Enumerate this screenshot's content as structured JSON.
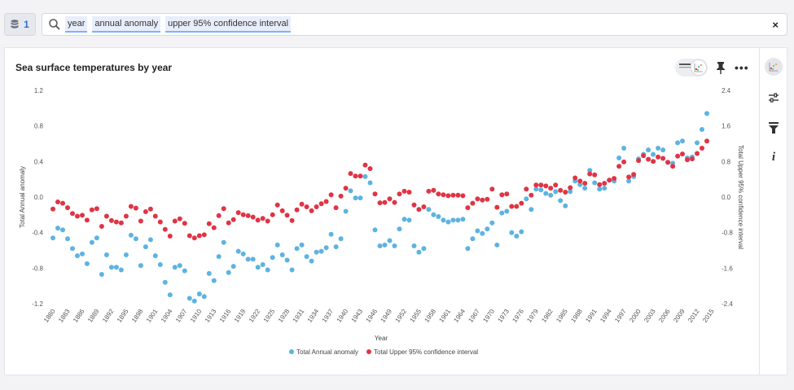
{
  "source_button": {
    "count": "1",
    "icon": "database-icon"
  },
  "search": {
    "icon": "search-icon",
    "tokens": [
      "year",
      "annual anomaly",
      "upper 95% confidence interval"
    ],
    "clear": "×"
  },
  "card": {
    "title": "Sea surface temperatures by year",
    "more": "•••"
  },
  "sidebar": {
    "items": [
      "chart-type-icon",
      "settings-icon",
      "filter-icon",
      "info-icon"
    ],
    "info_label": "i"
  },
  "colors": {
    "annual": "#5db3e1",
    "upper": "#e03445",
    "accent": "#2f6fd3"
  },
  "chart_data": {
    "type": "scatter",
    "title": "Sea surface temperatures by year",
    "xlabel": "Year",
    "ylabel_left": "Total Annual anomaly",
    "ylabel_right": "Total Upper 95% confidence interval",
    "ylim_left": [
      -1.2,
      1.2
    ],
    "ylim_right": [
      -2.4,
      2.4
    ],
    "yticks_left": [
      "1.2",
      "0.8",
      "0.4",
      "0.0",
      "-0.4",
      "-0.8",
      "-1.2"
    ],
    "yticks_right": [
      "2.4",
      "1.6",
      "0.8",
      "0.0",
      "-0.8",
      "-1.6",
      "-2.4"
    ],
    "xlim": [
      1880,
      2015
    ],
    "xticks": [
      "1880",
      "1883",
      "1886",
      "1889",
      "1892",
      "1895",
      "1898",
      "1901",
      "1904",
      "1907",
      "1910",
      "1913",
      "1916",
      "1919",
      "1922",
      "1925",
      "1928",
      "1931",
      "1934",
      "1937",
      "1940",
      "1943",
      "1946",
      "1949",
      "1952",
      "1955",
      "1958",
      "1961",
      "1964",
      "1967",
      "1970",
      "1973",
      "1976",
      "1979",
      "1982",
      "1985",
      "1988",
      "1991",
      "1994",
      "1997",
      "2000",
      "2003",
      "2006",
      "2009",
      "2012",
      "2015"
    ],
    "legend_position": "bottom",
    "grid": false,
    "years_start": 1880,
    "series": [
      {
        "name": "Total Annual anomaly",
        "axis": "left",
        "values": [
          -0.46,
          -0.35,
          -0.37,
          -0.47,
          -0.58,
          -0.66,
          -0.64,
          -0.75,
          -0.51,
          -0.46,
          -0.87,
          -0.65,
          -0.79,
          -0.79,
          -0.82,
          -0.65,
          -0.43,
          -0.47,
          -0.77,
          -0.56,
          -0.48,
          -0.66,
          -0.76,
          -0.96,
          -1.1,
          -0.79,
          -0.77,
          -0.83,
          -1.14,
          -1.17,
          -1.09,
          -1.12,
          -0.86,
          -0.94,
          -0.67,
          -0.51,
          -0.85,
          -0.78,
          -0.61,
          -0.64,
          -0.7,
          -0.7,
          -0.79,
          -0.76,
          -0.82,
          -0.68,
          -0.54,
          -0.65,
          -0.71,
          -0.82,
          -0.58,
          -0.54,
          -0.67,
          -0.72,
          -0.62,
          -0.61,
          -0.57,
          -0.42,
          -0.56,
          -0.47,
          -0.16,
          0.07,
          -0.01,
          -0.01,
          0.23,
          0.16,
          -0.37,
          -0.55,
          -0.54,
          -0.49,
          -0.55,
          -0.36,
          -0.25,
          -0.26,
          -0.55,
          -0.62,
          -0.58,
          -0.14,
          -0.2,
          -0.22,
          -0.26,
          -0.28,
          -0.26,
          -0.26,
          -0.25,
          -0.58,
          -0.47,
          -0.38,
          -0.41,
          -0.36,
          -0.29,
          -0.54,
          -0.18,
          -0.16,
          -0.4,
          -0.44,
          -0.39,
          -0.02,
          -0.14,
          0.09,
          0.08,
          0.04,
          0.02,
          0.06,
          -0.04,
          -0.1,
          0.06,
          0.18,
          0.14,
          0.1,
          0.3,
          0.16,
          0.09,
          0.1,
          0.19,
          0.18,
          0.44,
          0.55,
          0.18,
          0.23,
          0.43,
          0.48,
          0.53,
          0.48,
          0.55,
          0.53,
          0.39,
          0.38,
          0.61,
          0.63,
          0.44,
          0.45,
          0.61,
          0.76,
          0.94
        ]
      },
      {
        "name": "Total Upper 95% confidence interval",
        "axis": "right",
        "values": [
          -0.27,
          -0.11,
          -0.14,
          -0.24,
          -0.37,
          -0.43,
          -0.41,
          -0.52,
          -0.29,
          -0.26,
          -0.66,
          -0.43,
          -0.53,
          -0.56,
          -0.58,
          -0.43,
          -0.21,
          -0.25,
          -0.54,
          -0.33,
          -0.27,
          -0.43,
          -0.56,
          -0.73,
          -0.88,
          -0.54,
          -0.49,
          -0.59,
          -0.87,
          -0.92,
          -0.87,
          -0.85,
          -0.6,
          -0.69,
          -0.42,
          -0.26,
          -0.58,
          -0.51,
          -0.35,
          -0.4,
          -0.42,
          -0.45,
          -0.52,
          -0.48,
          -0.54,
          -0.4,
          -0.18,
          -0.31,
          -0.41,
          -0.53,
          -0.29,
          -0.16,
          -0.22,
          -0.31,
          -0.22,
          -0.15,
          -0.1,
          0.05,
          -0.24,
          0.02,
          0.2,
          0.53,
          0.47,
          0.47,
          0.72,
          0.64,
          0.07,
          -0.13,
          -0.12,
          -0.04,
          -0.12,
          0.07,
          0.13,
          0.11,
          -0.18,
          -0.28,
          -0.22,
          0.13,
          0.15,
          0.07,
          0.05,
          0.03,
          0.04,
          0.04,
          0.03,
          -0.24,
          -0.14,
          -0.04,
          -0.07,
          -0.05,
          0.18,
          -0.23,
          0.05,
          0.07,
          -0.21,
          -0.21,
          -0.14,
          0.18,
          0.04,
          0.27,
          0.27,
          0.25,
          0.2,
          0.27,
          0.15,
          0.11,
          0.21,
          0.43,
          0.36,
          0.31,
          0.52,
          0.5,
          0.28,
          0.31,
          0.38,
          0.42,
          0.69,
          0.79,
          0.45,
          0.51,
          0.82,
          0.93,
          0.85,
          0.8,
          0.9,
          0.87,
          0.78,
          0.69,
          0.92,
          0.97,
          0.84,
          0.86,
          0.98,
          1.1,
          1.26
        ]
      }
    ]
  }
}
